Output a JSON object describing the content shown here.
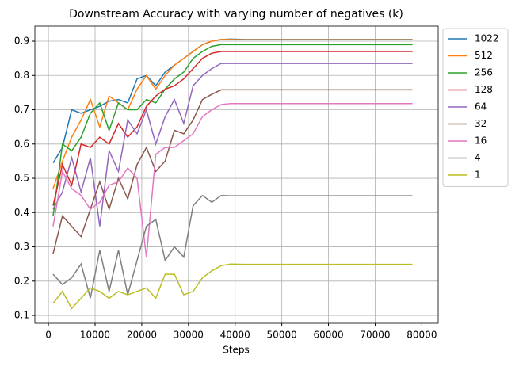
{
  "chart_data": {
    "type": "line",
    "title": "Downstream Accuracy with varying number of negatives (k)",
    "xlabel": "Steps",
    "x": [
      1000,
      3000,
      5000,
      7000,
      9000,
      11000,
      13000,
      15000,
      17000,
      19000,
      21000,
      23000,
      25000,
      27000,
      29000,
      31000,
      33000,
      35000,
      37000,
      39000,
      42000,
      46000,
      50000,
      54000,
      58000,
      62000,
      66000,
      70000,
      74000,
      78000
    ],
    "series": [
      {
        "name": "1022",
        "color": "#1f77b4",
        "values": [
          0.545,
          0.59,
          0.7,
          0.69,
          0.7,
          0.71,
          0.725,
          0.73,
          0.72,
          0.79,
          0.8,
          0.77,
          0.81,
          0.83,
          0.85,
          0.87,
          0.89,
          0.9,
          0.905,
          0.906,
          0.905,
          0.905,
          0.905,
          0.905,
          0.905,
          0.905,
          0.905,
          0.905,
          0.905,
          0.905
        ]
      },
      {
        "name": "512",
        "color": "#ff7f0e",
        "values": [
          0.47,
          0.55,
          0.62,
          0.67,
          0.73,
          0.65,
          0.74,
          0.72,
          0.7,
          0.76,
          0.8,
          0.76,
          0.8,
          0.83,
          0.85,
          0.87,
          0.89,
          0.9,
          0.905,
          0.905,
          0.904,
          0.904,
          0.904,
          0.904,
          0.904,
          0.904,
          0.904,
          0.904,
          0.904,
          0.904
        ]
      },
      {
        "name": "256",
        "color": "#2ca02c",
        "values": [
          0.39,
          0.6,
          0.58,
          0.62,
          0.69,
          0.72,
          0.64,
          0.72,
          0.7,
          0.7,
          0.73,
          0.72,
          0.76,
          0.79,
          0.81,
          0.85,
          0.87,
          0.885,
          0.89,
          0.89,
          0.89,
          0.89,
          0.89,
          0.89,
          0.89,
          0.89,
          0.89,
          0.89,
          0.89,
          0.89
        ]
      },
      {
        "name": "128",
        "color": "#d62728",
        "values": [
          0.42,
          0.54,
          0.48,
          0.6,
          0.59,
          0.62,
          0.6,
          0.66,
          0.62,
          0.65,
          0.71,
          0.74,
          0.76,
          0.77,
          0.79,
          0.82,
          0.85,
          0.865,
          0.87,
          0.87,
          0.87,
          0.87,
          0.87,
          0.87,
          0.87,
          0.87,
          0.87,
          0.87,
          0.87,
          0.87
        ]
      },
      {
        "name": "64",
        "color": "#9467bd",
        "values": [
          0.41,
          0.46,
          0.56,
          0.46,
          0.56,
          0.36,
          0.58,
          0.52,
          0.67,
          0.63,
          0.7,
          0.6,
          0.68,
          0.73,
          0.66,
          0.77,
          0.8,
          0.82,
          0.835,
          0.835,
          0.835,
          0.835,
          0.835,
          0.835,
          0.835,
          0.835,
          0.835,
          0.835,
          0.835,
          0.835
        ]
      },
      {
        "name": "32",
        "color": "#8c564b",
        "values": [
          0.28,
          0.39,
          0.36,
          0.33,
          0.41,
          0.49,
          0.41,
          0.5,
          0.44,
          0.54,
          0.59,
          0.52,
          0.55,
          0.64,
          0.63,
          0.67,
          0.73,
          0.745,
          0.758,
          0.758,
          0.758,
          0.758,
          0.758,
          0.758,
          0.758,
          0.758,
          0.758,
          0.758,
          0.758,
          0.758
        ]
      },
      {
        "name": "16",
        "color": "#e377c2",
        "values": [
          0.36,
          0.52,
          0.47,
          0.45,
          0.41,
          0.43,
          0.48,
          0.49,
          0.53,
          0.5,
          0.27,
          0.57,
          0.59,
          0.59,
          0.61,
          0.63,
          0.68,
          0.7,
          0.715,
          0.718,
          0.718,
          0.718,
          0.718,
          0.718,
          0.718,
          0.718,
          0.718,
          0.718,
          0.718,
          0.718
        ]
      },
      {
        "name": "4",
        "color": "#7f7f7f",
        "values": [
          0.22,
          0.19,
          0.21,
          0.25,
          0.15,
          0.29,
          0.17,
          0.29,
          0.16,
          0.26,
          0.36,
          0.38,
          0.26,
          0.3,
          0.27,
          0.42,
          0.45,
          0.43,
          0.45,
          0.449,
          0.449,
          0.449,
          0.449,
          0.449,
          0.449,
          0.449,
          0.449,
          0.449,
          0.449,
          0.449
        ]
      },
      {
        "name": "1",
        "color": "#bcbd22",
        "values": [
          0.135,
          0.17,
          0.12,
          0.15,
          0.18,
          0.17,
          0.15,
          0.17,
          0.16,
          0.17,
          0.18,
          0.15,
          0.22,
          0.22,
          0.16,
          0.17,
          0.21,
          0.23,
          0.245,
          0.25,
          0.249,
          0.249,
          0.249,
          0.249,
          0.249,
          0.249,
          0.249,
          0.249,
          0.249,
          0.249
        ]
      }
    ],
    "xlim": [
      -2900,
      83500
    ],
    "xticks": [
      0,
      10000,
      20000,
      30000,
      40000,
      50000,
      60000,
      70000,
      80000
    ],
    "ylim": [
      0.077,
      0.944
    ],
    "yticks": [
      0.1,
      0.2,
      0.3,
      0.4,
      0.5,
      0.6,
      0.7,
      0.8,
      0.9
    ],
    "grid": true,
    "legend": "outside-right"
  }
}
